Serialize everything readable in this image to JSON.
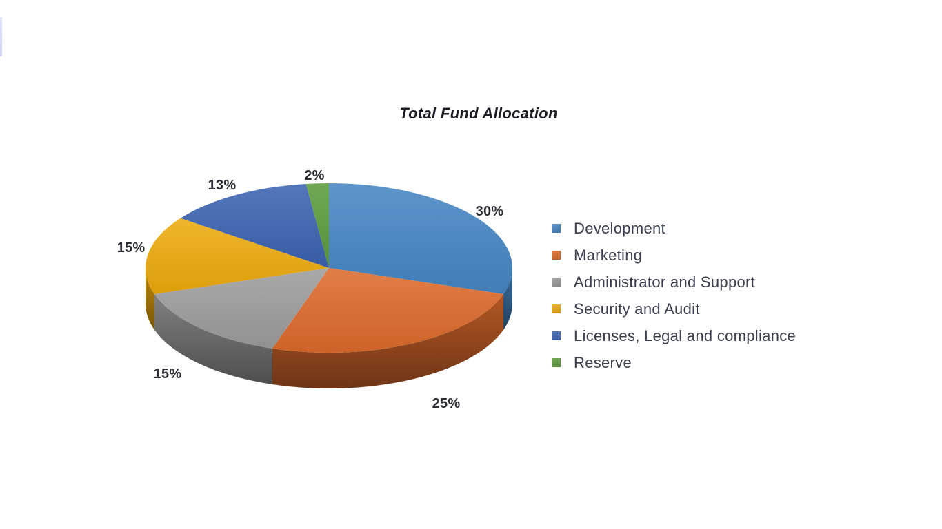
{
  "page": {
    "background_color": "#ffffff",
    "left_strip_color": "#d3daf6"
  },
  "chart_data": {
    "type": "pie",
    "style": "3d",
    "title": "Total Fund Allocation",
    "legend_position": "right",
    "title_color": "#1b1c26",
    "data_label_color": "#2b2e37",
    "legend_text_color": "#3a3f4e",
    "slices": [
      {
        "label": "Development",
        "value": 30,
        "display": "30%",
        "color": "#4685c3"
      },
      {
        "label": "Marketing",
        "value": 25,
        "display": "25%",
        "color": "#dc6a2b"
      },
      {
        "label": "Administrator and Support",
        "value": 15,
        "display": "15%",
        "color": "#9c9c9c"
      },
      {
        "label": "Security and Audit",
        "value": 15,
        "display": "15%",
        "color": "#edaa0c"
      },
      {
        "label": "Licenses, Legal and compliance",
        "value": 13,
        "display": "13%",
        "color": "#3a63b0"
      },
      {
        "label": "Reserve",
        "value": 2,
        "display": "2%",
        "color": "#5c9b3c"
      }
    ]
  }
}
